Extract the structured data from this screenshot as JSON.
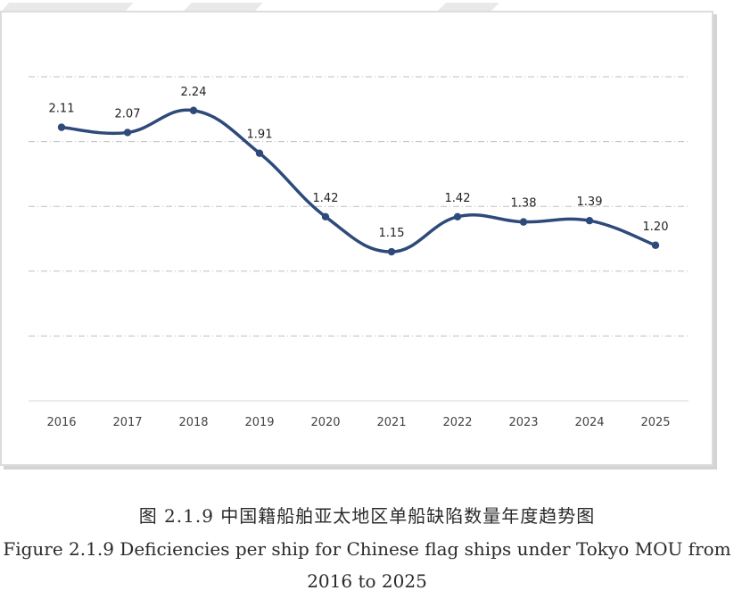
{
  "chart_data": {
    "type": "line",
    "x": [
      "2016",
      "2017",
      "2018",
      "2019",
      "2020",
      "2021",
      "2022",
      "2023",
      "2024",
      "2025"
    ],
    "series": [
      {
        "values": [
          2.11,
          2.07,
          2.24,
          1.91,
          1.42,
          1.15,
          1.42,
          1.38,
          1.39,
          1.2
        ]
      }
    ],
    "data_labels": [
      "2.11",
      "2.07",
      "2.24",
      "1.91",
      "1.42",
      "1.15",
      "1.42",
      "1.38",
      "1.39",
      "1.20"
    ],
    "ylim": [
      0,
      2.5
    ],
    "y_gridlines": [
      0.5,
      1.0,
      1.5,
      2.0,
      2.5
    ],
    "y_axis_labels_shown": false,
    "grid": true,
    "grid_style": "dash-dot",
    "smooth": true,
    "colors": {
      "line": "#2e4a7a",
      "grid": "#bfbfbf",
      "axis": "#d9d9d9"
    }
  },
  "caption": {
    "chinese": "图 2.1.9 中国籍船舶亚太地区单船缺陷数量年度趋势图",
    "english": "Figure 2.1.9 Deficiencies per ship for Chinese flag ships under Tokyo MOU from 2016 to 2025"
  }
}
